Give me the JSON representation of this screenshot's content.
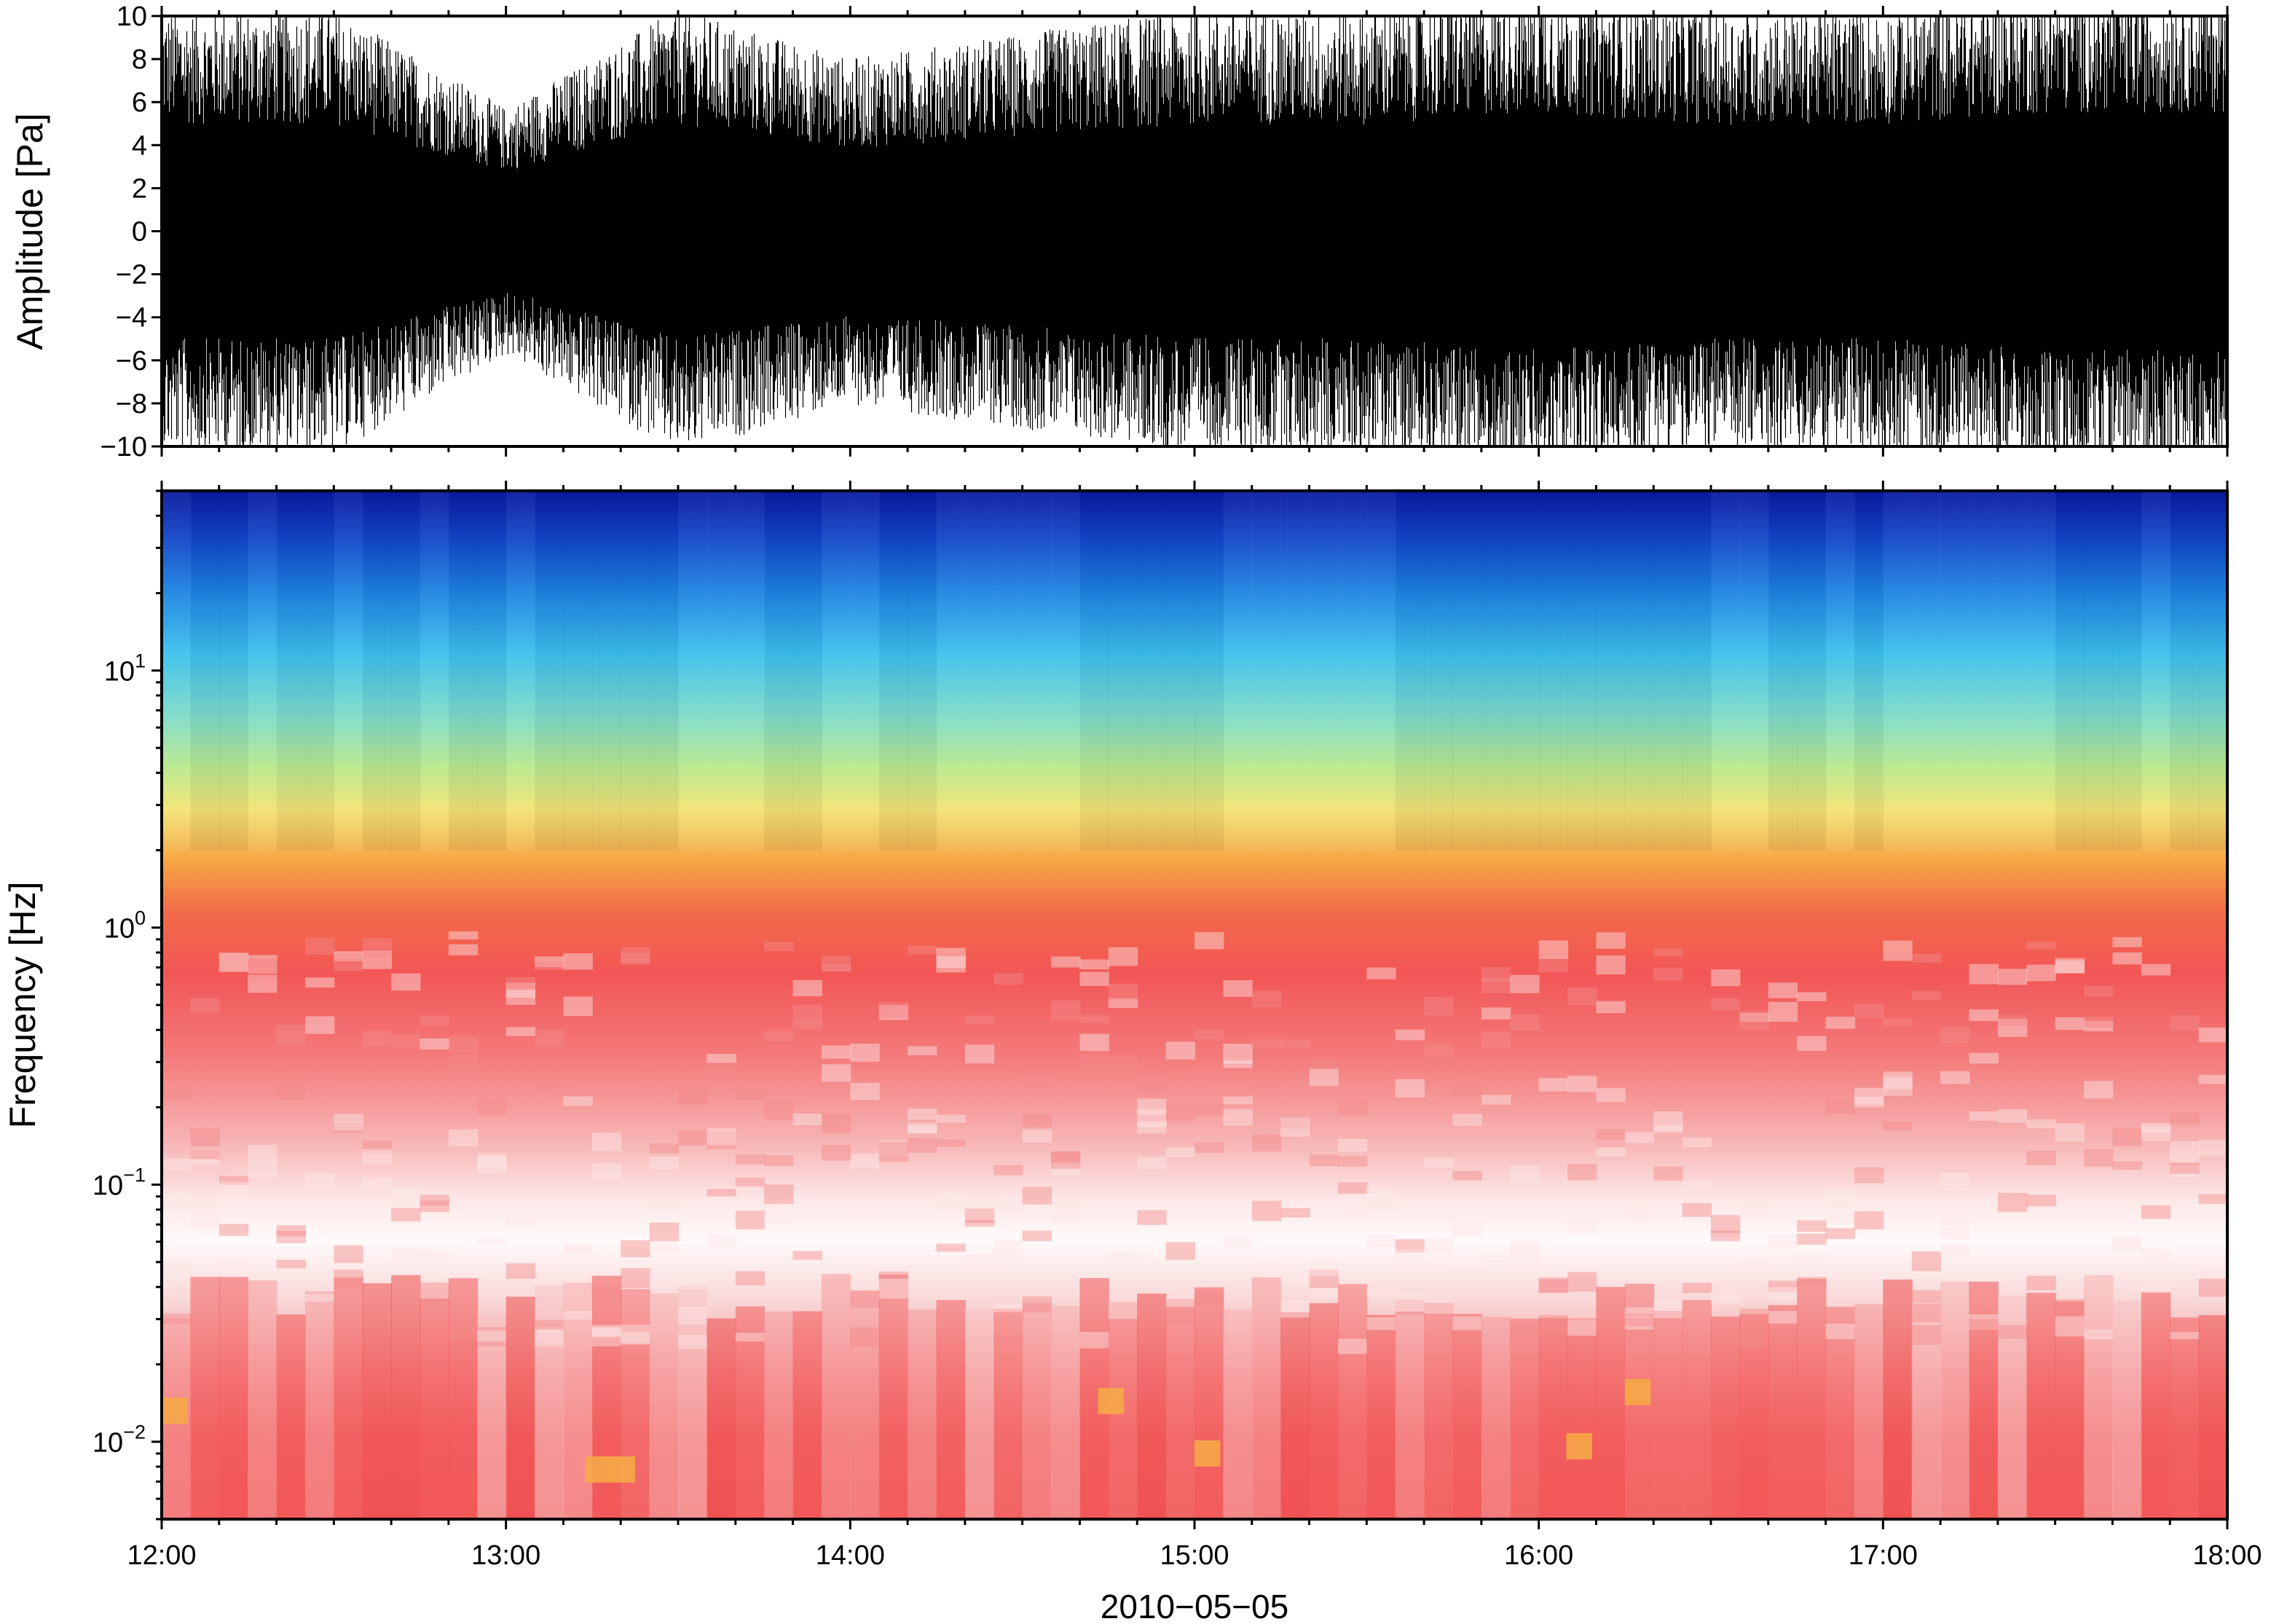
{
  "chart_data": [
    {
      "type": "line",
      "ylabel": "Amplitude [Pa]",
      "ylim": [
        -10,
        10
      ],
      "y_ticks": [
        -10,
        -8,
        -6,
        -4,
        -2,
        0,
        2,
        4,
        6,
        8,
        10
      ],
      "y_tick_labels": [
        "−10",
        "−8",
        "−6",
        "−4",
        "−2",
        "0",
        "2",
        "4",
        "6",
        "8",
        "10"
      ],
      "x_range": [
        "12:00",
        "18:00"
      ],
      "grid": false,
      "series_envelope": {
        "x": [
          "12:00",
          "12:30",
          "13:00",
          "13:30",
          "14:00",
          "14:30",
          "15:00",
          "15:30",
          "16:00",
          "16:30",
          "17:00",
          "17:30",
          "18:00"
        ],
        "typical_peak_abs": [
          9,
          9,
          5,
          9,
          7,
          8,
          9,
          9,
          10,
          9,
          9,
          10,
          10
        ]
      }
    },
    {
      "type": "heatmap",
      "ylabel": "Frequency [Hz]",
      "y_scale": "log",
      "ylim": [
        0.005,
        50
      ],
      "y_ticks": [
        0.01,
        0.1,
        1,
        10
      ],
      "y_tick_labels": [
        {
          "base": "10",
          "exp": "−2"
        },
        {
          "base": "10",
          "exp": "−1"
        },
        {
          "base": "10",
          "exp": "0"
        },
        {
          "base": "10",
          "exp": "1"
        }
      ],
      "x_ticks": [
        "12:00",
        "13:00",
        "14:00",
        "15:00",
        "16:00",
        "17:00",
        "18:00"
      ],
      "xlabel": "2010−05−05",
      "grid": false,
      "colormap_profile": {
        "frequency_hz": [
          50,
          30,
          15,
          8,
          5,
          3,
          2,
          1,
          0.5,
          0.2,
          0.1,
          0.05,
          0.02,
          0.01,
          0.005
        ],
        "color": [
          "#0a1aa0",
          "#1560d8",
          "#2ab0ee",
          "#66d8d0",
          "#b8e88e",
          "#f4e070",
          "#f7a040",
          "#f25656",
          "#f47878",
          "#f6b0b0",
          "#fdf2f2",
          "#f8d0d0",
          "#f48a8a",
          "#f26060",
          "#f25858"
        ]
      }
    }
  ]
}
